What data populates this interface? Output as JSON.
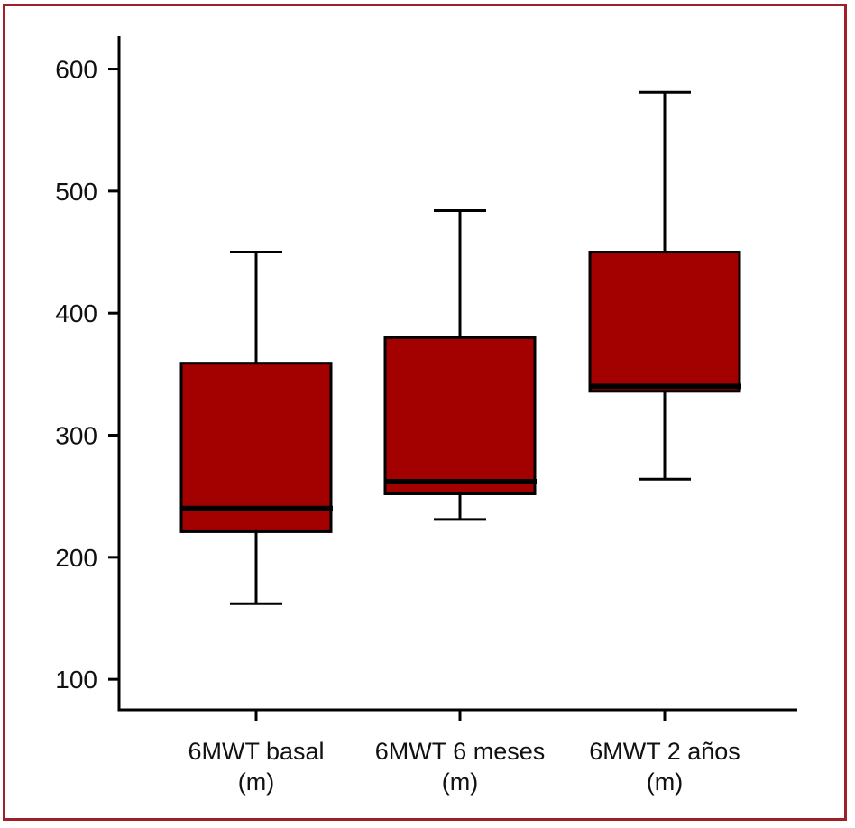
{
  "chart_data": {
    "type": "box",
    "title": "",
    "xlabel": "",
    "ylabel": "",
    "ylim": [
      75,
      627
    ],
    "yticks": [
      100,
      200,
      300,
      400,
      500,
      600
    ],
    "ytick_labels": [
      "100",
      "200",
      "300",
      "400",
      "500",
      "600"
    ],
    "grid": false,
    "legend": "none",
    "box_fill": "#a30000",
    "outline_color": "#000000",
    "frame_color": "#a0202a",
    "categories": [
      {
        "label_line1": "6MWT basal",
        "label_line2": "(m)"
      },
      {
        "label_line1": "6MWT 6 meses",
        "label_line2": "(m)"
      },
      {
        "label_line1": "6MWT 2 años",
        "label_line2": "(m)"
      }
    ],
    "boxes": [
      {
        "whisker_low": 162,
        "q1": 221,
        "median": 240,
        "q3": 359,
        "whisker_high": 450
      },
      {
        "whisker_low": 231,
        "q1": 252,
        "median": 262,
        "q3": 380,
        "whisker_high": 484
      },
      {
        "whisker_low": 264,
        "q1": 336,
        "median": 340,
        "q3": 450,
        "whisker_high": 581
      }
    ]
  }
}
